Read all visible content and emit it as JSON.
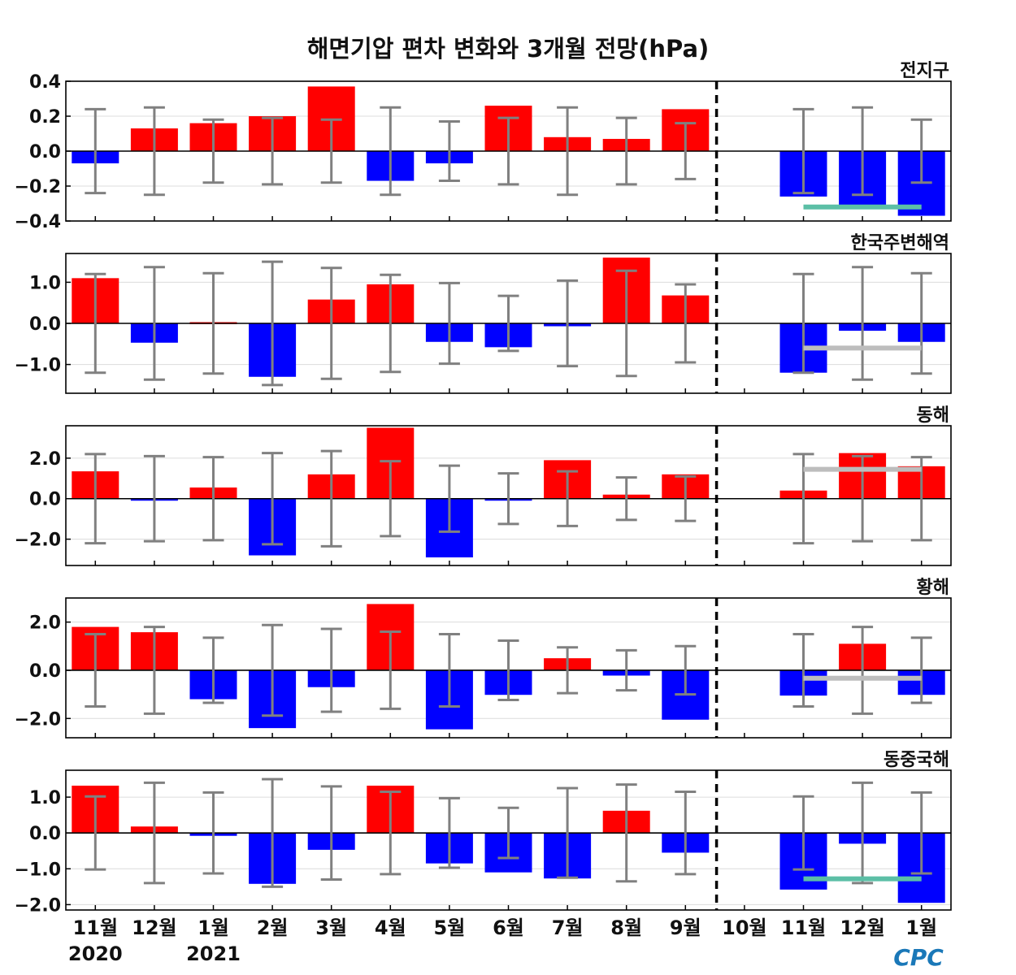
{
  "title": "해면기압 편차 변화와 3개월 전망(hPa)",
  "month_labels": [
    "11월",
    "12월",
    "1월",
    "2월",
    "3월",
    "4월",
    "5월",
    "6월",
    "7월",
    "8월",
    "9월",
    "10월",
    "11월",
    "12월",
    "1월"
  ],
  "year_labels": [
    {
      "text": "2020",
      "under": 0
    },
    {
      "text": "2021",
      "under": 2
    }
  ],
  "logo": "CPC",
  "colors": {
    "positive": "#ff0000",
    "negative": "#0000ff",
    "errorbar": "#808080",
    "forecast_teal": "#5cbfa6",
    "forecast_gray": "#bdbdbd",
    "divider": "#000000"
  },
  "chart_data": [
    {
      "type": "bar",
      "title": "전지구",
      "categories": [
        "11월",
        "12월",
        "1월",
        "2월",
        "3월",
        "4월",
        "5월",
        "6월",
        "7월",
        "8월",
        "9월",
        "10월",
        "11월",
        "12월",
        "1월"
      ],
      "values": [
        -0.07,
        0.13,
        0.16,
        0.2,
        0.37,
        -0.17,
        -0.07,
        0.26,
        0.08,
        0.07,
        0.24,
        0.0,
        -0.26,
        -0.32,
        -0.37
      ],
      "errorbar_halfwidth": [
        0.24,
        0.25,
        0.18,
        0.19,
        0.18,
        0.25,
        0.17,
        0.19,
        0.25,
        0.19,
        0.16,
        null,
        0.24,
        0.25,
        0.18
      ],
      "forecast_range": {
        "value": -0.32,
        "from": "11월",
        "to": "1월",
        "color": "teal"
      },
      "ylim": [
        -0.4,
        0.4
      ],
      "yticks": [
        -0.4,
        -0.2,
        0.0,
        0.2,
        0.4
      ],
      "ytick_labels": [
        "−0.4",
        "−0.2",
        "0.0",
        "0.2",
        "0.4"
      ],
      "grid": true
    },
    {
      "type": "bar",
      "title": "한국주변해역",
      "categories": [
        "11월",
        "12월",
        "1월",
        "2월",
        "3월",
        "4월",
        "5월",
        "6월",
        "7월",
        "8월",
        "9월",
        "10월",
        "11월",
        "12월",
        "1월"
      ],
      "values": [
        1.1,
        -0.47,
        0.03,
        -1.3,
        0.58,
        0.95,
        -0.45,
        -0.58,
        -0.07,
        1.6,
        0.68,
        0.0,
        -1.2,
        -0.18,
        -0.45
      ],
      "errorbar_halfwidth": [
        1.2,
        1.37,
        1.22,
        1.5,
        1.35,
        1.18,
        0.98,
        0.67,
        1.04,
        1.28,
        0.95,
        null,
        1.2,
        1.37,
        1.22
      ],
      "forecast_range": {
        "value": -0.6,
        "from": "11월",
        "to": "1월",
        "color": "gray"
      },
      "ylim": [
        -1.7,
        1.7
      ],
      "yticks": [
        -1.0,
        0.0,
        1.0
      ],
      "ytick_labels": [
        "−1.0",
        "0.0",
        "1.0"
      ],
      "grid": true
    },
    {
      "type": "bar",
      "title": "동해",
      "categories": [
        "11월",
        "12월",
        "1월",
        "2월",
        "3월",
        "4월",
        "5월",
        "6월",
        "7월",
        "8월",
        "9월",
        "10월",
        "11월",
        "12월",
        "1월"
      ],
      "values": [
        1.35,
        -0.08,
        0.55,
        -2.8,
        1.2,
        3.5,
        -2.9,
        -0.08,
        1.9,
        0.2,
        1.2,
        0.0,
        0.4,
        2.25,
        1.6
      ],
      "errorbar_halfwidth": [
        2.2,
        2.1,
        2.05,
        2.25,
        2.35,
        1.85,
        1.63,
        1.25,
        1.35,
        1.05,
        1.1,
        null,
        2.2,
        2.1,
        2.05
      ],
      "forecast_range": {
        "value": 1.45,
        "from": "11월",
        "to": "1월",
        "color": "gray"
      },
      "ylim": [
        -3.3,
        3.6
      ],
      "yticks": [
        -2.0,
        0.0,
        2.0
      ],
      "ytick_labels": [
        "−2.0",
        "0.0",
        "2.0"
      ],
      "grid": true
    },
    {
      "type": "bar",
      "title": "황해",
      "categories": [
        "11월",
        "12월",
        "1월",
        "2월",
        "3월",
        "4월",
        "5월",
        "6월",
        "7월",
        "8월",
        "9월",
        "10월",
        "11월",
        "12월",
        "1월"
      ],
      "values": [
        1.8,
        1.58,
        -1.2,
        -2.4,
        -0.7,
        2.75,
        -2.45,
        -1.02,
        0.5,
        -0.22,
        -2.05,
        0.0,
        -1.05,
        1.1,
        -1.02
      ],
      "errorbar_halfwidth": [
        1.5,
        1.8,
        1.35,
        1.88,
        1.72,
        1.6,
        1.5,
        1.23,
        0.95,
        0.83,
        1.0,
        null,
        1.5,
        1.8,
        1.35
      ],
      "forecast_range": {
        "value": -0.33,
        "from": "11월",
        "to": "1월",
        "color": "gray"
      },
      "ylim": [
        -2.8,
        3.0
      ],
      "yticks": [
        -2.0,
        0.0,
        2.0
      ],
      "ytick_labels": [
        "−2.0",
        "0.0",
        "2.0"
      ],
      "grid": true
    },
    {
      "type": "bar",
      "title": "동중국해",
      "categories": [
        "11월",
        "12월",
        "1월",
        "2월",
        "3월",
        "4월",
        "5월",
        "6월",
        "7월",
        "8월",
        "9월",
        "10월",
        "11월",
        "12월",
        "1월"
      ],
      "values": [
        1.32,
        0.18,
        -0.08,
        -1.42,
        -0.47,
        1.32,
        -0.85,
        -1.1,
        -1.27,
        0.62,
        -0.55,
        0.0,
        -1.58,
        -0.3,
        -1.95
      ],
      "errorbar_halfwidth": [
        1.02,
        1.4,
        1.13,
        1.5,
        1.3,
        1.15,
        0.97,
        0.7,
        1.25,
        1.35,
        1.15,
        null,
        1.02,
        1.4,
        1.13
      ],
      "forecast_range": {
        "value": -1.28,
        "from": "11월",
        "to": "1월",
        "color": "teal"
      },
      "ylim": [
        -2.15,
        1.75
      ],
      "yticks": [
        -2.0,
        -1.0,
        0.0,
        1.0
      ],
      "ytick_labels": [
        "−2.0",
        "−1.0",
        "0.0",
        "1.0"
      ],
      "grid": true
    }
  ]
}
